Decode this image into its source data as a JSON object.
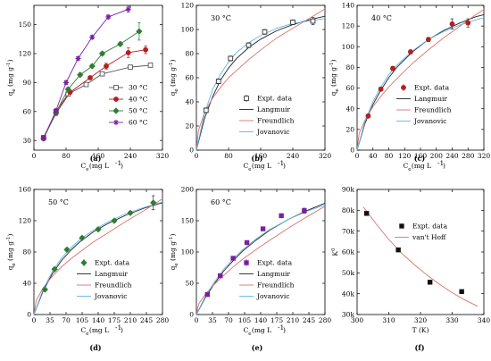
{
  "colors": {
    "c30": "#555555",
    "c40": "#b32020",
    "c50": "#2e7d32",
    "c60": "#7a1fa2",
    "langmuir": "#222222",
    "freundlich": "#d9736b",
    "jovanovic": "#5cb8e6",
    "expt": "#333333"
  },
  "chart_data": [
    {
      "panel": "(a)",
      "type": "line",
      "xlabel": "Ce (mg L-1)",
      "ylabel": "qe (mg g-1)",
      "xlim": [
        0,
        320
      ],
      "ylim": [
        20,
        170
      ],
      "xticks": [
        0,
        80,
        160,
        240,
        320
      ],
      "yticks": [
        30,
        60,
        90,
        120,
        150
      ],
      "legend": "right",
      "series": [
        {
          "name": "30 °C",
          "key": "c30",
          "marker": "square-open",
          "x": [
            24,
            55,
            85,
            130,
            170,
            240,
            290
          ],
          "y": [
            33,
            60,
            78,
            88,
            99,
            106,
            108
          ],
          "err": [
            2,
            2,
            2,
            2,
            2,
            2,
            2
          ]
        },
        {
          "name": "40 °C",
          "key": "c40",
          "marker": "circle",
          "x": [
            24,
            55,
            90,
            140,
            180,
            235,
            278
          ],
          "y": [
            33,
            58,
            80,
            95,
            107,
            121,
            124
          ],
          "err": [
            2,
            2,
            2,
            2,
            3,
            5,
            4
          ]
        },
        {
          "name": "50 °C",
          "key": "c50",
          "marker": "diamond",
          "x": [
            24,
            55,
            85,
            115,
            145,
            170,
            215,
            262
          ],
          "y": [
            32,
            59,
            83,
            98,
            107,
            120,
            130,
            143
          ],
          "err": [
            2,
            2,
            2,
            2,
            2,
            2,
            2,
            9
          ]
        },
        {
          "name": "60 °C",
          "key": "c60",
          "marker": "star",
          "x": [
            24,
            55,
            80,
            110,
            145,
            185,
            235
          ],
          "y": [
            32,
            61,
            90,
            115,
            137,
            158,
            166
          ],
          "err": [
            2,
            2,
            2,
            2,
            2,
            2,
            3
          ]
        }
      ]
    },
    {
      "panel": "(b)",
      "temp": "30 °C",
      "type": "line",
      "xlabel": "Ce (mg L-1)",
      "ylabel": "qe (mg g-1)",
      "xlim": [
        0,
        320
      ],
      "ylim": [
        0,
        120
      ],
      "xticks": [
        0,
        80,
        160,
        240,
        320
      ],
      "yticks": [
        0,
        20,
        40,
        60,
        80,
        100,
        120
      ],
      "legend": "bottom-right",
      "expt": {
        "name": "Expt. data",
        "marker": "square-open",
        "x": [
          24,
          55,
          85,
          130,
          170,
          240,
          290
        ],
        "y": [
          33,
          57,
          76,
          87,
          98,
          106,
          107
        ],
        "err": [
          2,
          2,
          2,
          2,
          2,
          2,
          3
        ]
      },
      "fits": [
        {
          "name": "Langmuir",
          "key": "langmuir",
          "x": [
            0,
            20,
            40,
            60,
            80,
            100,
            130,
            160,
            200,
            240,
            280,
            320
          ],
          "y": [
            0,
            26,
            44,
            58,
            68,
            76,
            85,
            92,
            99,
            104,
            108,
            111
          ]
        },
        {
          "name": "Freundlich",
          "key": "freundlich",
          "x": [
            0,
            5,
            20,
            40,
            60,
            80,
            100,
            130,
            160,
            200,
            240,
            280,
            320
          ],
          "y": [
            0,
            16,
            31,
            43,
            52,
            60,
            66,
            75,
            83,
            93,
            101,
            109,
            117
          ]
        },
        {
          "name": "Jovanovic",
          "key": "jovanovic",
          "x": [
            0,
            20,
            40,
            60,
            80,
            100,
            130,
            160,
            200,
            240,
            280,
            320
          ],
          "y": [
            0,
            30,
            50,
            63,
            73,
            81,
            89,
            95,
            101,
            105,
            107,
            109
          ]
        }
      ]
    },
    {
      "panel": "(c)",
      "temp": "40 °C",
      "type": "line",
      "xlabel": "Ce (mg L-1)",
      "ylabel": "qe (mg g-1)",
      "xlim": [
        0,
        320
      ],
      "ylim": [
        0,
        140
      ],
      "xticks": [
        0,
        40,
        80,
        120,
        160,
        200,
        240,
        280,
        320
      ],
      "yticks": [
        0,
        20,
        40,
        60,
        80,
        100,
        120,
        140
      ],
      "legend": "right",
      "expt": {
        "name": "Expt. data",
        "marker": "circle",
        "x": [
          28,
          60,
          90,
          135,
          180,
          240,
          280
        ],
        "y": [
          33,
          59,
          79,
          95,
          107,
          122,
          123
        ],
        "err": [
          2,
          2,
          2,
          2,
          2,
          5,
          4
        ]
      },
      "fits": [
        {
          "name": "Langmuir",
          "key": "langmuir",
          "x": [
            0,
            20,
            40,
            60,
            80,
            100,
            140,
            180,
            220,
            260,
            300,
            320
          ],
          "y": [
            0,
            26,
            44,
            58,
            70,
            80,
            95,
            107,
            116,
            123,
            129,
            131
          ]
        },
        {
          "name": "Freundlich",
          "key": "freundlich",
          "x": [
            0,
            5,
            20,
            40,
            60,
            80,
            100,
            140,
            180,
            220,
            260,
            300,
            320
          ],
          "y": [
            0,
            16,
            29,
            42,
            52,
            61,
            69,
            84,
            97,
            109,
            120,
            131,
            136
          ]
        },
        {
          "name": "Jovanovic",
          "key": "jovanovic",
          "x": [
            0,
            20,
            40,
            60,
            80,
            100,
            140,
            180,
            220,
            260,
            300,
            320
          ],
          "y": [
            0,
            28,
            47,
            61,
            73,
            82,
            96,
            107,
            115,
            121,
            126,
            128
          ]
        }
      ]
    },
    {
      "panel": "(d)",
      "temp": "50 °C",
      "type": "line",
      "xlabel": "Ce (mg L-1)",
      "ylabel": "qe (mg g-1)",
      "xlim": [
        0,
        280
      ],
      "ylim": [
        0,
        160
      ],
      "xticks": [
        0,
        35,
        70,
        105,
        140,
        175,
        210,
        245,
        280
      ],
      "yticks": [
        0,
        40,
        80,
        120,
        160
      ],
      "legend": "bottom-right",
      "expt": {
        "name": "Expt. data",
        "marker": "diamond",
        "x": [
          24,
          45,
          72,
          105,
          140,
          175,
          210,
          260
        ],
        "y": [
          32,
          58,
          83,
          98,
          109,
          120,
          130,
          143
        ],
        "err": [
          2,
          2,
          2,
          2,
          2,
          2,
          2,
          9
        ]
      },
      "fits": [
        {
          "name": "Langmuir",
          "key": "langmuir",
          "x": [
            0,
            20,
            40,
            60,
            80,
            100,
            130,
            160,
            200,
            240,
            280
          ],
          "y": [
            0,
            30,
            52,
            69,
            82,
            93,
            106,
            116,
            127,
            136,
            143
          ]
        },
        {
          "name": "Freundlich",
          "key": "freundlich",
          "x": [
            0,
            5,
            20,
            40,
            60,
            80,
            100,
            130,
            160,
            200,
            240,
            280
          ],
          "y": [
            0,
            18,
            34,
            49,
            61,
            71,
            80,
            93,
            104,
            119,
            133,
            148
          ]
        },
        {
          "name": "Jovanovic",
          "key": "jovanovic",
          "x": [
            0,
            20,
            40,
            60,
            80,
            100,
            130,
            160,
            200,
            240,
            280
          ],
          "y": [
            0,
            32,
            55,
            72,
            85,
            96,
            108,
            118,
            129,
            137,
            144
          ]
        }
      ]
    },
    {
      "panel": "(e)",
      "temp": "60 °C",
      "type": "line",
      "xlabel": "Ce (mg L-1)",
      "ylabel": "qe (mg g-1)",
      "xlim": [
        0,
        280
      ],
      "ylim": [
        0,
        200
      ],
      "xticks": [
        0,
        35,
        70,
        105,
        140,
        175,
        210,
        245,
        280
      ],
      "yticks": [
        0,
        50,
        100,
        150,
        200
      ],
      "legend": "bottom-right",
      "expt": {
        "name": "Expt. data",
        "marker": "square",
        "x": [
          24,
          52,
          80,
          110,
          145,
          185,
          235
        ],
        "y": [
          32,
          62,
          90,
          115,
          137,
          158,
          166
        ],
        "err": [
          2,
          2,
          2,
          2,
          3,
          3,
          4
        ]
      },
      "fits": [
        {
          "name": "Langmuir",
          "key": "langmuir",
          "x": [
            0,
            20,
            40,
            60,
            80,
            100,
            130,
            160,
            200,
            240,
            280
          ],
          "y": [
            0,
            28,
            50,
            70,
            86,
            101,
            119,
            135,
            152,
            166,
            178
          ]
        },
        {
          "name": "Freundlich",
          "key": "freundlich",
          "x": [
            0,
            5,
            20,
            40,
            60,
            80,
            100,
            130,
            160,
            200,
            240,
            280
          ],
          "y": [
            0,
            17,
            33,
            49,
            63,
            76,
            88,
            104,
            119,
            138,
            156,
            173
          ]
        },
        {
          "name": "Jovanovic",
          "key": "jovanovic",
          "x": [
            0,
            20,
            40,
            60,
            80,
            100,
            130,
            160,
            200,
            240,
            280
          ],
          "y": [
            0,
            30,
            53,
            73,
            89,
            103,
            121,
            136,
            152,
            165,
            175
          ]
        }
      ]
    },
    {
      "panel": "(f)",
      "type": "scatter",
      "xlabel": "T (K)",
      "ylabel": "K0",
      "xlim": [
        300,
        340
      ],
      "ylim": [
        30000,
        90000
      ],
      "xticks": [
        300,
        310,
        320,
        330,
        340
      ],
      "yticks": [
        30000,
        40000,
        50000,
        60000,
        70000,
        80000,
        90000
      ],
      "ytick_labels": [
        "30k",
        "40k",
        "50k",
        "60k",
        "70k",
        "80k",
        "90k"
      ],
      "legend": "top-right",
      "expt": {
        "name": "Expt. data",
        "marker": "square",
        "x": [
          303,
          313,
          323,
          333
        ],
        "y": [
          78500,
          61000,
          45500,
          41000
        ]
      },
      "fits": [
        {
          "name": "van't Hoff",
          "key": "freundlich",
          "x": [
            302,
            306,
            310,
            314,
            318,
            322,
            326,
            330,
            334,
            338
          ],
          "y": [
            81500,
            73500,
            66000,
            59500,
            54000,
            49000,
            44500,
            40500,
            37000,
            34000
          ]
        }
      ]
    }
  ]
}
